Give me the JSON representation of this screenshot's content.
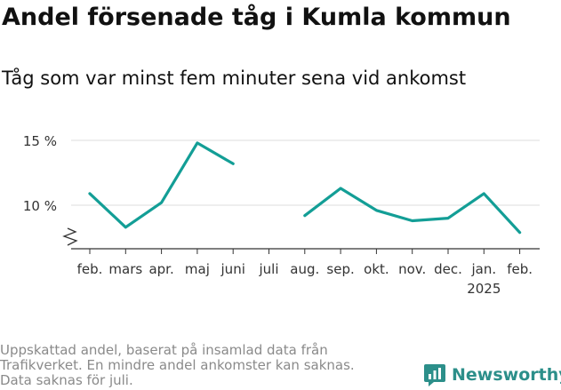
{
  "title": "Andel försenade tåg i Kumla kommun",
  "subtitle": "Tåg som var minst fem minuter sena vid ankomst",
  "footnote": {
    "line1": "Uppskattad andel, baserat på insamlad data från",
    "line2": "Trafikverket. En mindre andel ankomster kan saknas.",
    "line3": "Data saknas för juli."
  },
  "brand": {
    "name": "Newsworthy",
    "icon": "newsworthy-logo-icon",
    "color": "#2c8f8a"
  },
  "chart_data": {
    "type": "line",
    "categories": [
      "feb.",
      "mars",
      "apr.",
      "maj",
      "juni",
      "juli",
      "aug.",
      "sep.",
      "okt.",
      "nov.",
      "dec.",
      "jan.",
      "feb."
    ],
    "year_label": "2025",
    "year_label_category_index": 11,
    "series": [
      {
        "values": [
          10.9,
          8.3,
          10.2,
          14.8,
          13.2,
          null,
          9.2,
          11.3,
          9.6,
          8.8,
          9.0,
          10.9,
          7.9
        ],
        "color": "#139e96"
      }
    ],
    "yticks": [
      {
        "value": 10,
        "label": "10 %"
      },
      {
        "value": 15,
        "label": "15 %"
      }
    ],
    "ylim": [
      7.5,
      16
    ],
    "y_axis_broken": true,
    "grid": true
  }
}
